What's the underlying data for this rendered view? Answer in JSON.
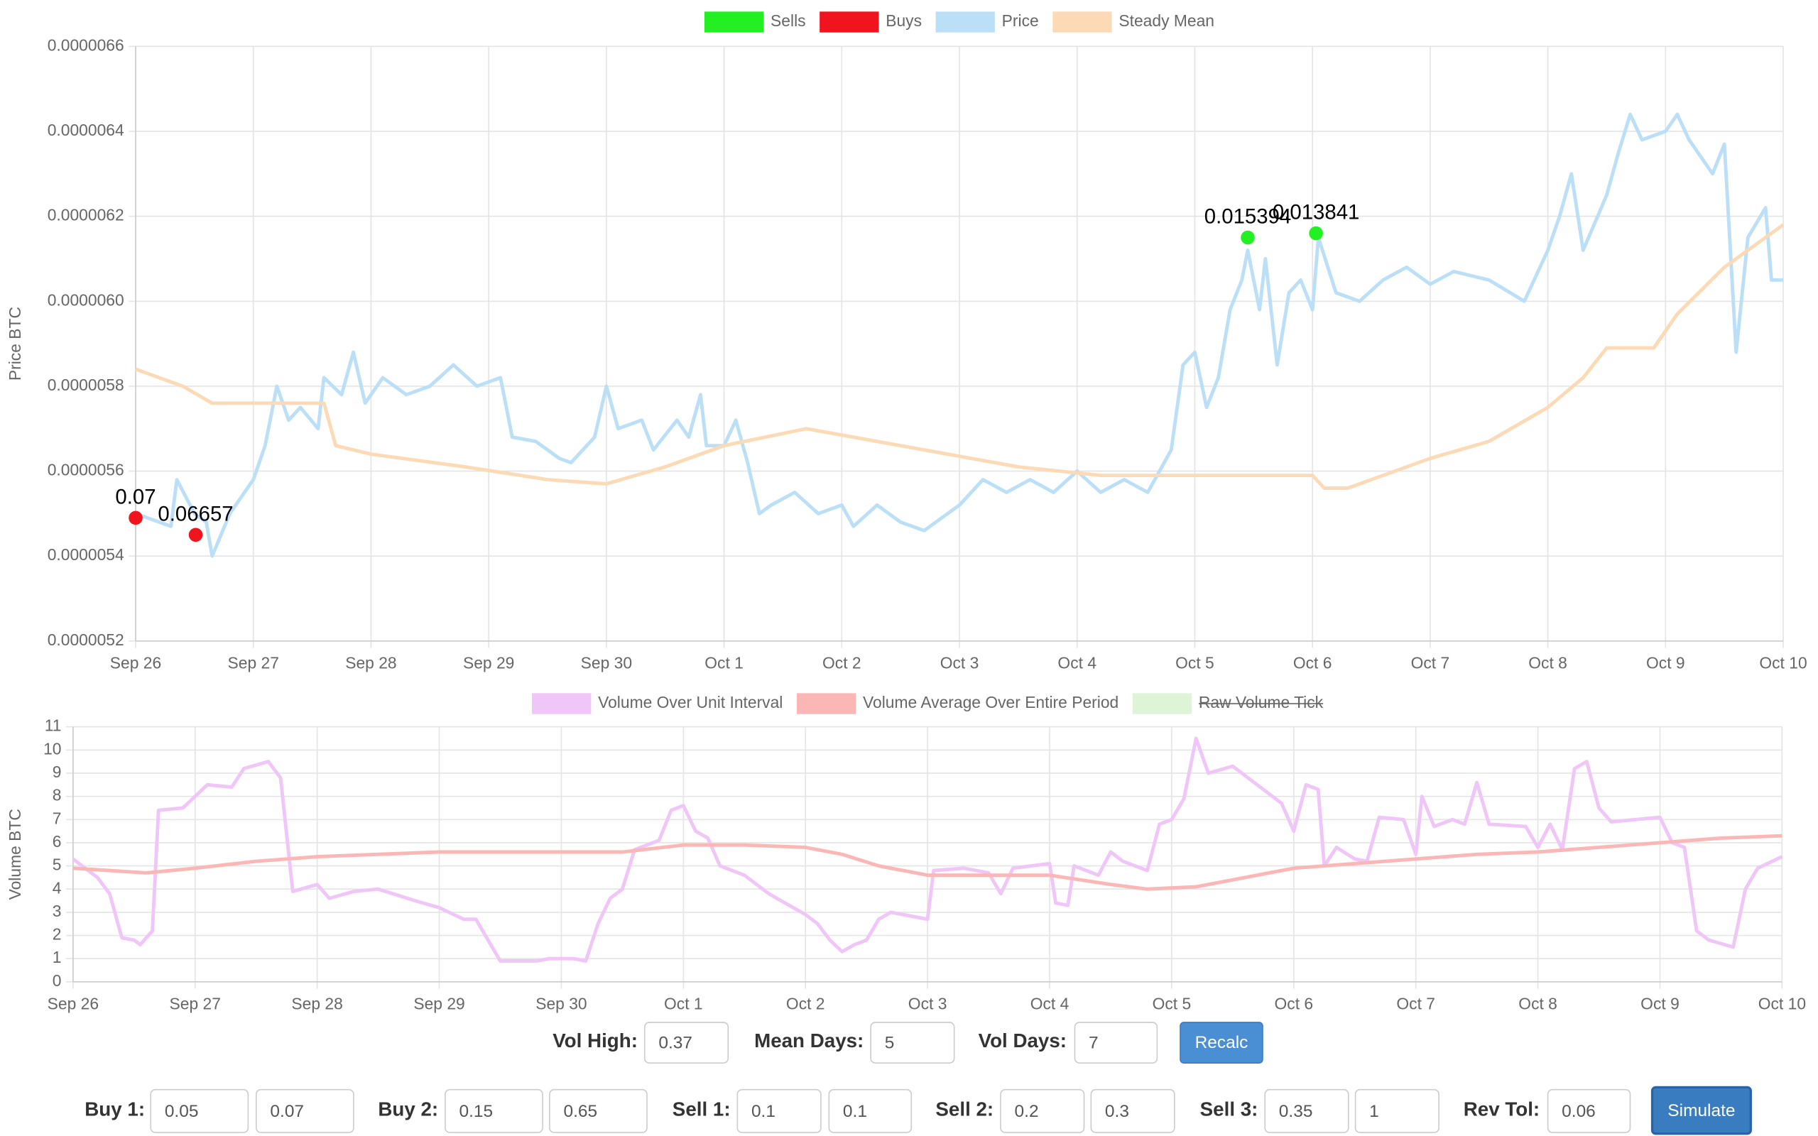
{
  "chart_data": [
    {
      "type": "line",
      "ylabel": "Price BTC",
      "grid": true,
      "legend": "top",
      "xlim": [
        0,
        14
      ],
      "xticks": [
        {
          "value": 0,
          "label": "Sep 26"
        },
        {
          "value": 1,
          "label": "Sep 27"
        },
        {
          "value": 2,
          "label": "Sep 28"
        },
        {
          "value": 3,
          "label": "Sep 29"
        },
        {
          "value": 4,
          "label": "Sep 30"
        },
        {
          "value": 5,
          "label": "Oct 1"
        },
        {
          "value": 6,
          "label": "Oct 2"
        },
        {
          "value": 7,
          "label": "Oct 3"
        },
        {
          "value": 8,
          "label": "Oct 4"
        },
        {
          "value": 9,
          "label": "Oct 5"
        },
        {
          "value": 10,
          "label": "Oct 6"
        },
        {
          "value": 11,
          "label": "Oct 7"
        },
        {
          "value": 12,
          "label": "Oct 8"
        },
        {
          "value": 13,
          "label": "Oct 9"
        },
        {
          "value": 14,
          "label": "Oct 10"
        }
      ],
      "ylim": [
        5.2e-06,
        6.6e-06
      ],
      "yticks": [
        {
          "value": 5.2e-06,
          "label": "0.0000052"
        },
        {
          "value": 5.4e-06,
          "label": "0.0000054"
        },
        {
          "value": 5.6e-06,
          "label": "0.0000056"
        },
        {
          "value": 5.8e-06,
          "label": "0.0000058"
        },
        {
          "value": 6e-06,
          "label": "0.0000060"
        },
        {
          "value": 6.2e-06,
          "label": "0.0000062"
        },
        {
          "value": 6.4e-06,
          "label": "0.0000064"
        },
        {
          "value": 6.6e-06,
          "label": "0.0000066"
        }
      ],
      "series": [
        {
          "name": "Sells",
          "color": "#22f022",
          "marker": "point",
          "x": [
            9.45,
            10.03
          ],
          "values": [
            6.15e-06,
            6.16e-06
          ],
          "value_labels": [
            "0.015394",
            "0.013841"
          ]
        },
        {
          "name": "Buys",
          "color": "#f0141e",
          "marker": "point",
          "x": [
            0,
            0.51
          ],
          "values": [
            5.49e-06,
            5.45e-06
          ],
          "value_labels": [
            "0.07",
            "0.06657"
          ]
        },
        {
          "name": "Price",
          "color": "#bcdff8",
          "x": [
            0,
            0.3,
            0.35,
            0.5,
            0.6,
            0.65,
            0.8,
            1.0,
            1.1,
            1.2,
            1.3,
            1.4,
            1.55,
            1.6,
            1.75,
            1.85,
            1.95,
            2.1,
            2.3,
            2.5,
            2.7,
            2.9,
            3.1,
            3.2,
            3.4,
            3.6,
            3.7,
            3.9,
            4.0,
            4.1,
            4.3,
            4.4,
            4.6,
            4.7,
            4.8,
            4.85,
            5.0,
            5.1,
            5.2,
            5.3,
            5.4,
            5.6,
            5.8,
            6.0,
            6.1,
            6.3,
            6.5,
            6.7,
            7.0,
            7.2,
            7.4,
            7.6,
            7.8,
            8.0,
            8.2,
            8.4,
            8.6,
            8.8,
            8.9,
            9.0,
            9.1,
            9.2,
            9.3,
            9.4,
            9.45,
            9.55,
            9.6,
            9.7,
            9.8,
            9.9,
            10.0,
            10.05,
            10.2,
            10.4,
            10.6,
            10.8,
            11.0,
            11.2,
            11.5,
            11.8,
            12.0,
            12.1,
            12.2,
            12.3,
            12.5,
            12.6,
            12.7,
            12.8,
            13.0,
            13.1,
            13.2,
            13.4,
            13.5,
            13.6,
            13.7,
            13.85,
            13.9,
            14.0
          ],
          "values": [
            5.5e-06,
            5.47e-06,
            5.58e-06,
            5.5e-06,
            5.48e-06,
            5.4e-06,
            5.5e-06,
            5.58e-06,
            5.66e-06,
            5.8e-06,
            5.72e-06,
            5.75e-06,
            5.7e-06,
            5.82e-06,
            5.78e-06,
            5.88e-06,
            5.76e-06,
            5.82e-06,
            5.78e-06,
            5.8e-06,
            5.85e-06,
            5.8e-06,
            5.82e-06,
            5.68e-06,
            5.67e-06,
            5.63e-06,
            5.62e-06,
            5.68e-06,
            5.8e-06,
            5.7e-06,
            5.72e-06,
            5.65e-06,
            5.72e-06,
            5.68e-06,
            5.78e-06,
            5.66e-06,
            5.66e-06,
            5.72e-06,
            5.62e-06,
            5.5e-06,
            5.52e-06,
            5.55e-06,
            5.5e-06,
            5.52e-06,
            5.47e-06,
            5.52e-06,
            5.48e-06,
            5.46e-06,
            5.52e-06,
            5.58e-06,
            5.55e-06,
            5.58e-06,
            5.55e-06,
            5.6e-06,
            5.55e-06,
            5.58e-06,
            5.55e-06,
            5.65e-06,
            5.85e-06,
            5.88e-06,
            5.75e-06,
            5.82e-06,
            5.98e-06,
            6.05e-06,
            6.12e-06,
            5.98e-06,
            6.1e-06,
            5.85e-06,
            6.02e-06,
            6.05e-06,
            5.98e-06,
            6.15e-06,
            6.02e-06,
            6e-06,
            6.05e-06,
            6.08e-06,
            6.04e-06,
            6.07e-06,
            6.05e-06,
            6e-06,
            6.12e-06,
            6.2e-06,
            6.3e-06,
            6.12e-06,
            6.25e-06,
            6.35e-06,
            6.44e-06,
            6.38e-06,
            6.4e-06,
            6.44e-06,
            6.38e-06,
            6.3e-06,
            6.37e-06,
            5.88e-06,
            6.15e-06,
            6.22e-06,
            6.05e-06,
            6.05e-06
          ]
        },
        {
          "name": "Steady Mean",
          "color": "#fcdab5",
          "x": [
            0,
            0.4,
            0.65,
            1.6,
            1.7,
            2.0,
            2.8,
            3.5,
            4.0,
            4.5,
            5.0,
            5.7,
            6.5,
            7.5,
            8.2,
            8.8,
            9.5,
            10.0,
            10.1,
            10.3,
            11.0,
            11.5,
            12.0,
            12.3,
            12.5,
            12.9,
            13.1,
            13.5,
            14.0
          ],
          "values": [
            5.84e-06,
            5.8e-06,
            5.76e-06,
            5.76e-06,
            5.66e-06,
            5.64e-06,
            5.61e-06,
            5.58e-06,
            5.57e-06,
            5.61e-06,
            5.66e-06,
            5.7e-06,
            5.66e-06,
            5.61e-06,
            5.59e-06,
            5.59e-06,
            5.59e-06,
            5.59e-06,
            5.56e-06,
            5.56e-06,
            5.63e-06,
            5.67e-06,
            5.75e-06,
            5.82e-06,
            5.89e-06,
            5.89e-06,
            5.97e-06,
            6.08e-06,
            6.18e-06
          ]
        }
      ]
    },
    {
      "type": "line",
      "ylabel": "Volume BTC",
      "grid": true,
      "legend": "top",
      "xlim": [
        0,
        14
      ],
      "xticks": [
        {
          "value": 0,
          "label": "Sep 26"
        },
        {
          "value": 1,
          "label": "Sep 27"
        },
        {
          "value": 2,
          "label": "Sep 28"
        },
        {
          "value": 3,
          "label": "Sep 29"
        },
        {
          "value": 4,
          "label": "Sep 30"
        },
        {
          "value": 5,
          "label": "Oct 1"
        },
        {
          "value": 6,
          "label": "Oct 2"
        },
        {
          "value": 7,
          "label": "Oct 3"
        },
        {
          "value": 8,
          "label": "Oct 4"
        },
        {
          "value": 9,
          "label": "Oct 5"
        },
        {
          "value": 10,
          "label": "Oct 6"
        },
        {
          "value": 11,
          "label": "Oct 7"
        },
        {
          "value": 12,
          "label": "Oct 8"
        },
        {
          "value": 13,
          "label": "Oct 9"
        },
        {
          "value": 14,
          "label": "Oct 10"
        }
      ],
      "ylim": [
        0,
        11
      ],
      "yticks": [
        0,
        1,
        2,
        3,
        4,
        5,
        6,
        7,
        8,
        9,
        10,
        11
      ],
      "series": [
        {
          "name": "Volume Over Unit Interval",
          "color": "#f0c6f8",
          "x": [
            0,
            0.2,
            0.3,
            0.4,
            0.5,
            0.55,
            0.65,
            0.7,
            0.9,
            1.0,
            1.1,
            1.3,
            1.4,
            1.6,
            1.7,
            1.8,
            2.0,
            2.1,
            2.3,
            2.5,
            2.8,
            3.0,
            3.2,
            3.3,
            3.4,
            3.5,
            3.8,
            3.9,
            4.1,
            4.2,
            4.3,
            4.4,
            4.5,
            4.6,
            4.8,
            4.9,
            5.0,
            5.1,
            5.2,
            5.3,
            5.5,
            5.7,
            5.9,
            6.0,
            6.1,
            6.2,
            6.3,
            6.4,
            6.5,
            6.6,
            6.7,
            6.9,
            7.0,
            7.05,
            7.3,
            7.5,
            7.6,
            7.7,
            8.0,
            8.05,
            8.15,
            8.2,
            8.4,
            8.5,
            8.6,
            8.8,
            8.9,
            9.0,
            9.1,
            9.2,
            9.3,
            9.5,
            9.7,
            9.9,
            10.0,
            10.1,
            10.2,
            10.25,
            10.35,
            10.5,
            10.6,
            10.7,
            10.9,
            11.0,
            11.05,
            11.15,
            11.3,
            11.4,
            11.5,
            11.6,
            11.9,
            12.0,
            12.1,
            12.2,
            12.3,
            12.4,
            12.5,
            12.6,
            12.8,
            13.0,
            13.1,
            13.2,
            13.3,
            13.4,
            13.6,
            13.7,
            13.8,
            14.0
          ],
          "values": [
            5.3,
            4.5,
            3.8,
            1.9,
            1.8,
            1.6,
            2.2,
            7.4,
            7.5,
            8.0,
            8.5,
            8.4,
            9.2,
            9.5,
            8.8,
            3.9,
            4.2,
            3.6,
            3.9,
            4.0,
            3.5,
            3.2,
            2.7,
            2.7,
            1.8,
            0.9,
            0.9,
            1.0,
            1.0,
            0.9,
            2.5,
            3.6,
            4.0,
            5.7,
            6.1,
            7.4,
            7.6,
            6.5,
            6.2,
            5.0,
            4.6,
            3.8,
            3.2,
            2.9,
            2.5,
            1.8,
            1.3,
            1.6,
            1.8,
            2.7,
            3.0,
            2.8,
            2.7,
            4.8,
            4.9,
            4.7,
            3.8,
            4.9,
            5.1,
            3.4,
            3.3,
            5.0,
            4.6,
            5.6,
            5.2,
            4.8,
            6.8,
            7.0,
            7.9,
            10.5,
            9.0,
            9.3,
            8.5,
            7.7,
            6.5,
            8.5,
            8.3,
            5.0,
            5.8,
            5.3,
            5.2,
            7.1,
            7.0,
            5.5,
            8.0,
            6.7,
            7.0,
            6.8,
            8.6,
            6.8,
            6.7,
            5.8,
            6.8,
            5.7,
            9.2,
            9.5,
            7.5,
            6.9,
            7.0,
            7.1,
            6.0,
            5.8,
            2.2,
            1.8,
            1.5,
            4.0,
            4.9,
            5.4
          ]
        },
        {
          "name": "Volume Average Over Entire Period",
          "color": "#fbb6b6",
          "x": [
            0,
            0.6,
            1.0,
            1.5,
            2.0,
            3.0,
            4.0,
            4.5,
            5.0,
            5.5,
            6.0,
            6.3,
            6.6,
            7.0,
            7.5,
            8.0,
            8.5,
            8.8,
            9.2,
            9.6,
            10.0,
            10.5,
            11.0,
            11.5,
            12.0,
            12.5,
            13.0,
            13.5,
            14.0
          ],
          "values": [
            4.9,
            4.7,
            4.9,
            5.2,
            5.4,
            5.6,
            5.6,
            5.6,
            5.9,
            5.9,
            5.8,
            5.5,
            5.0,
            4.6,
            4.6,
            4.6,
            4.2,
            4.0,
            4.1,
            4.5,
            4.9,
            5.1,
            5.3,
            5.5,
            5.6,
            5.8,
            6.0,
            6.2,
            6.3
          ]
        },
        {
          "name": "Raw Volume Tick",
          "color": "#def4d6",
          "hidden": true
        }
      ]
    }
  ],
  "controls": {
    "row1": [
      {
        "label": "Vol High:",
        "value": "0.37"
      },
      {
        "label": "Mean Days:",
        "value": "5"
      },
      {
        "label": "Vol Days:",
        "value": "7"
      }
    ],
    "recalc": "Recalc",
    "row2": [
      {
        "label": "Buy 1:",
        "values": [
          "0.05",
          "0.07"
        ]
      },
      {
        "label": "Buy 2:",
        "values": [
          "0.15",
          "0.65"
        ]
      },
      {
        "label": "Sell 1:",
        "values": [
          "0.1",
          "0.1"
        ]
      },
      {
        "label": "Sell 2:",
        "values": [
          "0.2",
          "0.3"
        ]
      },
      {
        "label": "Sell 3:",
        "values": [
          "0.35",
          "1"
        ]
      },
      {
        "label": "Rev Tol:",
        "values": [
          "0.06"
        ]
      }
    ],
    "simulate": "Simulate"
  }
}
